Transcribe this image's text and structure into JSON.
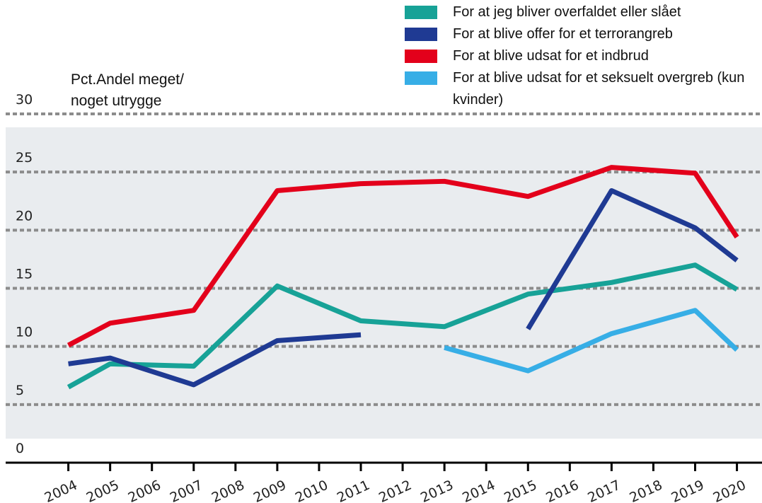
{
  "chart_data": {
    "type": "line",
    "ylabel": "Pct.Andel meget/ noget utrygge",
    "x": [
      2004,
      2005,
      2007,
      2009,
      2011,
      2013,
      2015,
      2017,
      2019,
      2020
    ],
    "series": [
      {
        "name": "For at jeg bliver overfaldet eller slået",
        "color": "#17a297",
        "values": [
          6.5,
          8.5,
          8.3,
          15.2,
          12.2,
          11.7,
          14.5,
          15.5,
          17.0,
          14.9
        ]
      },
      {
        "name": "For at blive offer for et terrorangreb",
        "color": "#1f3a93",
        "values": [
          8.5,
          9.0,
          6.7,
          10.5,
          11.0,
          null,
          11.5,
          23.4,
          20.2,
          17.4
        ]
      },
      {
        "name": "For at blive udsat for et indbrud",
        "color": "#e3001b",
        "values": [
          10.1,
          12.0,
          13.1,
          23.4,
          24.0,
          24.2,
          22.9,
          25.4,
          24.9,
          19.4
        ]
      },
      {
        "name": "For at blive udsat for et seksuelt overgreb (kun kvinder)",
        "color": "#37aee6",
        "values": [
          null,
          null,
          null,
          null,
          null,
          9.9,
          7.9,
          11.1,
          13.1,
          9.7
        ]
      }
    ],
    "xlim": [
      2002.5,
      2020.6
    ],
    "xticks": [
      2004,
      2005,
      2006,
      2007,
      2008,
      2009,
      2010,
      2011,
      2012,
      2013,
      2014,
      2015,
      2016,
      2017,
      2018,
      2019,
      2020
    ],
    "ylim": [
      0,
      30
    ],
    "yticks": [
      0,
      5,
      10,
      15,
      20,
      25,
      30
    ],
    "grid": true
  }
}
